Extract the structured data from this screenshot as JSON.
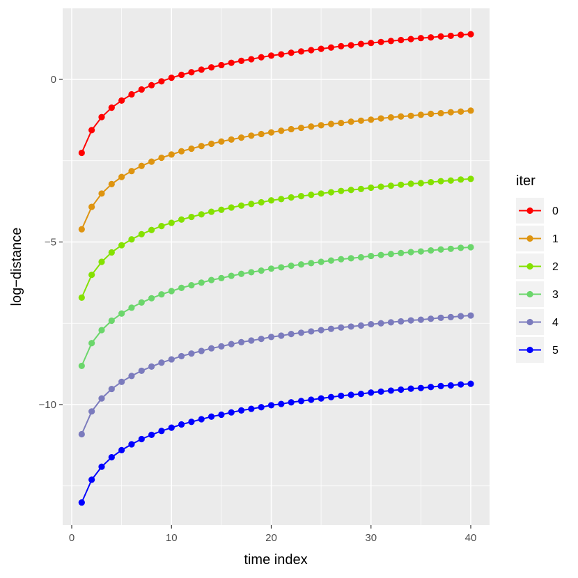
{
  "chart_data": {
    "type": "line",
    "xlabel": "time index",
    "ylabel": "log−distance",
    "xlim": [
      0,
      40
    ],
    "ylim": [
      -13.5,
      2.1
    ],
    "xticks": [
      0,
      10,
      20,
      30,
      40
    ],
    "xtick_labels": [
      "0",
      "10",
      "20",
      "30",
      "40"
    ],
    "yticks": [
      0,
      -5,
      -10
    ],
    "ytick_labels": [
      "0",
      "−5",
      "−10"
    ],
    "grid": true,
    "legend": {
      "title": "iter",
      "placement": "right"
    },
    "x": [
      1,
      2,
      3,
      4,
      5,
      6,
      7,
      8,
      9,
      10,
      11,
      12,
      13,
      14,
      15,
      16,
      17,
      18,
      19,
      20,
      21,
      22,
      23,
      24,
      25,
      26,
      27,
      28,
      29,
      30,
      31,
      32,
      33,
      34,
      35,
      36,
      37,
      38,
      39,
      40
    ],
    "series": [
      {
        "name": "0",
        "color": "#ff0000",
        "values": [
          -2.26,
          -1.56,
          -1.16,
          -0.87,
          -0.65,
          -0.46,
          -0.31,
          -0.18,
          -0.06,
          0.05,
          0.14,
          0.22,
          0.3,
          0.37,
          0.44,
          0.51,
          0.57,
          0.62,
          0.68,
          0.73,
          0.77,
          0.82,
          0.86,
          0.9,
          0.94,
          0.98,
          1.02,
          1.05,
          1.09,
          1.12,
          1.15,
          1.18,
          1.21,
          1.24,
          1.27,
          1.29,
          1.32,
          1.34,
          1.37,
          1.39
        ]
      },
      {
        "name": "1",
        "color": "#de9410",
        "values": [
          -4.61,
          -3.92,
          -3.51,
          -3.22,
          -3.0,
          -2.82,
          -2.66,
          -2.53,
          -2.41,
          -2.31,
          -2.21,
          -2.13,
          -2.05,
          -1.98,
          -1.91,
          -1.85,
          -1.79,
          -1.73,
          -1.68,
          -1.63,
          -1.58,
          -1.53,
          -1.49,
          -1.45,
          -1.41,
          -1.37,
          -1.34,
          -1.3,
          -1.27,
          -1.24,
          -1.2,
          -1.17,
          -1.14,
          -1.12,
          -1.09,
          -1.06,
          -1.04,
          -1.01,
          -0.99,
          -0.96
        ]
      },
      {
        "name": "2",
        "color": "#84e100",
        "values": [
          -6.71,
          -6.01,
          -5.61,
          -5.32,
          -5.1,
          -4.92,
          -4.76,
          -4.63,
          -4.51,
          -4.41,
          -4.31,
          -4.23,
          -4.15,
          -4.07,
          -4.01,
          -3.94,
          -3.88,
          -3.83,
          -3.78,
          -3.72,
          -3.68,
          -3.63,
          -3.59,
          -3.55,
          -3.51,
          -3.47,
          -3.43,
          -3.4,
          -3.37,
          -3.33,
          -3.3,
          -3.27,
          -3.24,
          -3.21,
          -3.19,
          -3.16,
          -3.13,
          -3.11,
          -3.08,
          -3.06
        ]
      },
      {
        "name": "3",
        "color": "#6bd66b",
        "values": [
          -8.81,
          -8.11,
          -7.71,
          -7.42,
          -7.2,
          -7.02,
          -6.86,
          -6.73,
          -6.61,
          -6.51,
          -6.41,
          -6.33,
          -6.25,
          -6.17,
          -6.11,
          -6.04,
          -5.98,
          -5.93,
          -5.88,
          -5.82,
          -5.78,
          -5.73,
          -5.69,
          -5.65,
          -5.61,
          -5.57,
          -5.53,
          -5.5,
          -5.47,
          -5.43,
          -5.4,
          -5.37,
          -5.34,
          -5.31,
          -5.29,
          -5.26,
          -5.23,
          -5.21,
          -5.18,
          -5.16
        ]
      },
      {
        "name": "4",
        "color": "#7b7bbd",
        "values": [
          -10.91,
          -10.21,
          -9.81,
          -9.52,
          -9.3,
          -9.12,
          -8.96,
          -8.83,
          -8.71,
          -8.61,
          -8.51,
          -8.43,
          -8.35,
          -8.27,
          -8.21,
          -8.14,
          -8.08,
          -8.03,
          -7.98,
          -7.92,
          -7.88,
          -7.83,
          -7.79,
          -7.75,
          -7.71,
          -7.67,
          -7.63,
          -7.6,
          -7.57,
          -7.53,
          -7.5,
          -7.47,
          -7.44,
          -7.41,
          -7.39,
          -7.36,
          -7.33,
          -7.31,
          -7.28,
          -7.26
        ]
      },
      {
        "name": "5",
        "color": "#0000ff",
        "values": [
          -13.01,
          -12.31,
          -11.91,
          -11.62,
          -11.4,
          -11.22,
          -11.06,
          -10.93,
          -10.81,
          -10.71,
          -10.61,
          -10.53,
          -10.45,
          -10.37,
          -10.31,
          -10.24,
          -10.18,
          -10.13,
          -10.08,
          -10.02,
          -9.98,
          -9.93,
          -9.89,
          -9.85,
          -9.81,
          -9.77,
          -9.73,
          -9.7,
          -9.67,
          -9.63,
          -9.6,
          -9.57,
          -9.54,
          -9.51,
          -9.49,
          -9.46,
          -9.43,
          -9.41,
          -9.38,
          -9.36
        ]
      }
    ]
  }
}
